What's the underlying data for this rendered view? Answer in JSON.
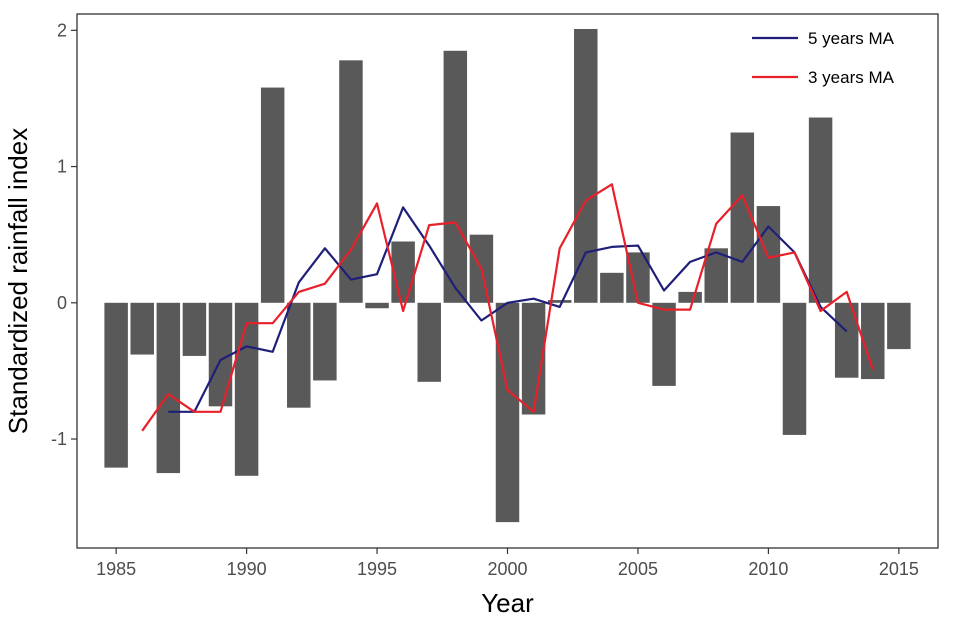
{
  "chart_data": {
    "type": "bar",
    "xlabel": "Year",
    "ylabel": "Standardized rainfall index",
    "xlim": [
      1983.5,
      2016.5
    ],
    "ylim": [
      -1.8,
      2.12
    ],
    "x_ticks": [
      1985,
      1990,
      1995,
      2000,
      2005,
      2010,
      2015
    ],
    "x_tick_labels": [
      "1985",
      "1990",
      "1995",
      "2000",
      "2005",
      "2010",
      "2015"
    ],
    "y_ticks": [
      -1,
      0,
      1,
      2
    ],
    "y_tick_labels": [
      "-1",
      "0",
      "1",
      "2"
    ],
    "grid": false,
    "legend_position": "top-right",
    "bars": {
      "color": "#595959",
      "x": [
        1985,
        1986,
        1987,
        1988,
        1989,
        1990,
        1991,
        1992,
        1993,
        1994,
        1995,
        1996,
        1997,
        1998,
        1999,
        2000,
        2001,
        2002,
        2003,
        2004,
        2005,
        2006,
        2007,
        2008,
        2009,
        2010,
        2011,
        2012,
        2013,
        2014,
        2015
      ],
      "values": [
        -1.21,
        -0.38,
        -1.25,
        -0.39,
        -0.76,
        -1.27,
        1.58,
        -0.77,
        -0.57,
        1.78,
        -0.04,
        0.45,
        -0.58,
        1.85,
        0.5,
        -1.61,
        -0.82,
        0.02,
        2.01,
        0.22,
        0.37,
        -0.61,
        0.08,
        0.4,
        1.25,
        0.71,
        -0.97,
        1.36,
        -0.55,
        -0.56,
        -0.34
      ]
    },
    "series": [
      {
        "name": "5 years MA",
        "color": "#1f1f7a",
        "x": [
          1987,
          1988,
          1989,
          1990,
          1991,
          1992,
          1993,
          1994,
          1995,
          1996,
          1997,
          1998,
          1999,
          2000,
          2001,
          2002,
          2003,
          2004,
          2005,
          2006,
          2007,
          2008,
          2009,
          2010,
          2011,
          2012,
          2013
        ],
        "values": [
          -0.8,
          -0.8,
          -0.42,
          -0.32,
          -0.36,
          0.15,
          0.4,
          0.17,
          0.21,
          0.7,
          0.42,
          0.11,
          -0.13,
          0.0,
          0.03,
          -0.03,
          0.37,
          0.41,
          0.42,
          0.09,
          0.3,
          0.37,
          0.3,
          0.56,
          0.37,
          -0.03,
          -0.21
        ]
      },
      {
        "name": "3 years MA",
        "color": "#e8202a",
        "x": [
          1986,
          1987,
          1988,
          1989,
          1990,
          1991,
          1992,
          1993,
          1994,
          1995,
          1996,
          1997,
          1998,
          1999,
          2000,
          2001,
          2002,
          2003,
          2004,
          2005,
          2006,
          2007,
          2008,
          2009,
          2010,
          2011,
          2012,
          2013,
          2014
        ],
        "values": [
          -0.94,
          -0.67,
          -0.8,
          -0.8,
          -0.15,
          -0.15,
          0.08,
          0.14,
          0.39,
          0.73,
          -0.06,
          0.57,
          0.59,
          0.25,
          -0.64,
          -0.8,
          0.4,
          0.75,
          0.87,
          0.0,
          -0.05,
          -0.05,
          0.58,
          0.79,
          0.33,
          0.37,
          -0.06,
          0.08,
          -0.49
        ]
      }
    ]
  }
}
